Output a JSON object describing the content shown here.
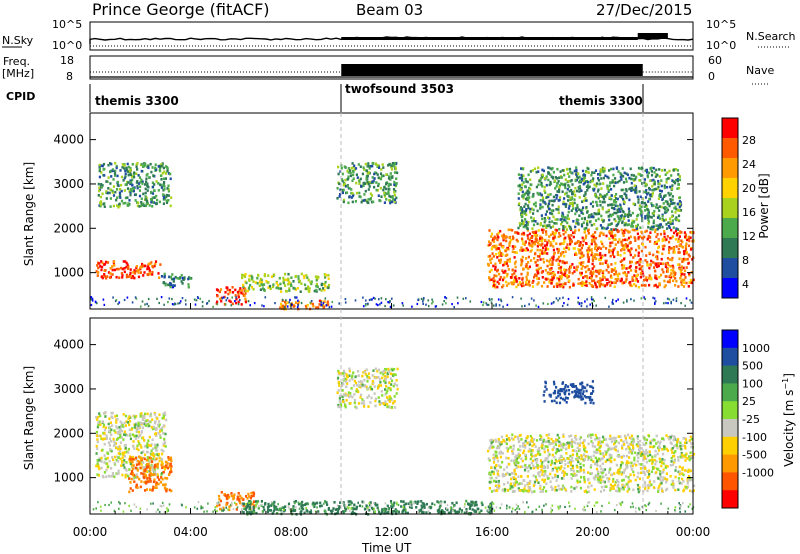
{
  "header": {
    "station": "Prince George (fitACF)",
    "beam": "Beam 03",
    "date": "27/Dec/2015"
  },
  "sky_panel": {
    "left_label": "N.Sky",
    "right_label": "N.Search",
    "left_ticks": [
      "10^5",
      "10^0"
    ],
    "right_ticks": [
      "10^5",
      "10^0"
    ]
  },
  "freq_panel": {
    "left_label_1": "Freq.",
    "left_label_2": "[MHz]",
    "right_label": "Nave",
    "left_ticks": [
      "18",
      "8"
    ],
    "right_ticks": [
      "60",
      "0"
    ]
  },
  "cpid": {
    "label": "CPID",
    "segments": [
      "themis 3300",
      "twofsound 3503",
      "themis 3300"
    ]
  },
  "x_axis": {
    "title": "Time UT",
    "ticks": [
      "00:00",
      "04:00",
      "08:00",
      "12:00",
      "16:00",
      "20:00",
      "00:00"
    ]
  },
  "colors": {
    "power": [
      "#0000ff",
      "#1f4ea0",
      "#2f7a55",
      "#4caa4c",
      "#a8d21e",
      "#ffd200",
      "#ff9a00",
      "#ff5a00",
      "#ff0000"
    ],
    "velocity": [
      "#0000ff",
      "#1f4ea0",
      "#2f7a55",
      "#4caa4c",
      "#88dd33",
      "#c8c8c0",
      "#ffd000",
      "#ff9900",
      "#ff5500",
      "#ff0000"
    ]
  },
  "chart_data": [
    {
      "type": "heatmap",
      "name": "power",
      "ylabel": "Slant Range [km]",
      "xlabel": "Time UT",
      "xlim": [
        0,
        24
      ],
      "ylim": [
        180,
        4600
      ],
      "yticks": [
        1000,
        2000,
        3000,
        4000
      ],
      "colorbar_label": "Power [dB]",
      "colorbar_ticks": [
        "28",
        "24",
        "20",
        "16",
        "12",
        "8",
        "4"
      ],
      "colorbar_range": [
        0,
        30
      ],
      "regions": [
        {
          "t": [
            0.2,
            2.8
          ],
          "r": [
            900,
            1300
          ],
          "level": 26
        },
        {
          "t": [
            0.3,
            3.2
          ],
          "r": [
            2500,
            3500
          ],
          "level": 10
        },
        {
          "t": [
            2.8,
            4.0
          ],
          "r": [
            700,
            1000
          ],
          "level": 8
        },
        {
          "t": [
            5.0,
            6.2
          ],
          "r": [
            300,
            700
          ],
          "level": 26
        },
        {
          "t": [
            6.0,
            9.5
          ],
          "r": [
            600,
            1000
          ],
          "level": 14
        },
        {
          "t": [
            7.5,
            9.5
          ],
          "r": [
            200,
            400
          ],
          "level": 22
        },
        {
          "t": [
            9.8,
            12.2
          ],
          "r": [
            2600,
            3500
          ],
          "level": 10
        },
        {
          "t": [
            15.8,
            24.0
          ],
          "r": [
            700,
            2000
          ],
          "level": 24
        },
        {
          "t": [
            17.0,
            23.5
          ],
          "r": [
            2000,
            3400
          ],
          "level": 10
        }
      ]
    },
    {
      "type": "heatmap",
      "name": "velocity",
      "ylabel": "Slant Range [km]",
      "xlabel": "Time UT",
      "xlim": [
        0,
        24
      ],
      "ylim": [
        180,
        4600
      ],
      "yticks": [
        1000,
        2000,
        3000,
        4000
      ],
      "colorbar_label": "Velocity [m s^-1]",
      "colorbar_ticks": [
        "1000",
        "500",
        "100",
        "25",
        "-25",
        "-100",
        "-500",
        "-1000"
      ],
      "regions": [
        {
          "t": [
            0.2,
            3.0
          ],
          "r": [
            1000,
            2500
          ],
          "velocity": 0
        },
        {
          "t": [
            1.5,
            3.2
          ],
          "r": [
            700,
            1500
          ],
          "velocity": -300
        },
        {
          "t": [
            5.0,
            6.5
          ],
          "r": [
            300,
            700
          ],
          "velocity": -300
        },
        {
          "t": [
            6.0,
            16.0
          ],
          "r": [
            200,
            500
          ],
          "velocity": 150
        },
        {
          "t": [
            9.8,
            12.2
          ],
          "r": [
            2600,
            3500
          ],
          "velocity": 0
        },
        {
          "t": [
            15.8,
            24.0
          ],
          "r": [
            700,
            2000
          ],
          "velocity": 0
        },
        {
          "t": [
            18.0,
            20.0
          ],
          "r": [
            2700,
            3200
          ],
          "velocity": 600
        }
      ]
    }
  ]
}
